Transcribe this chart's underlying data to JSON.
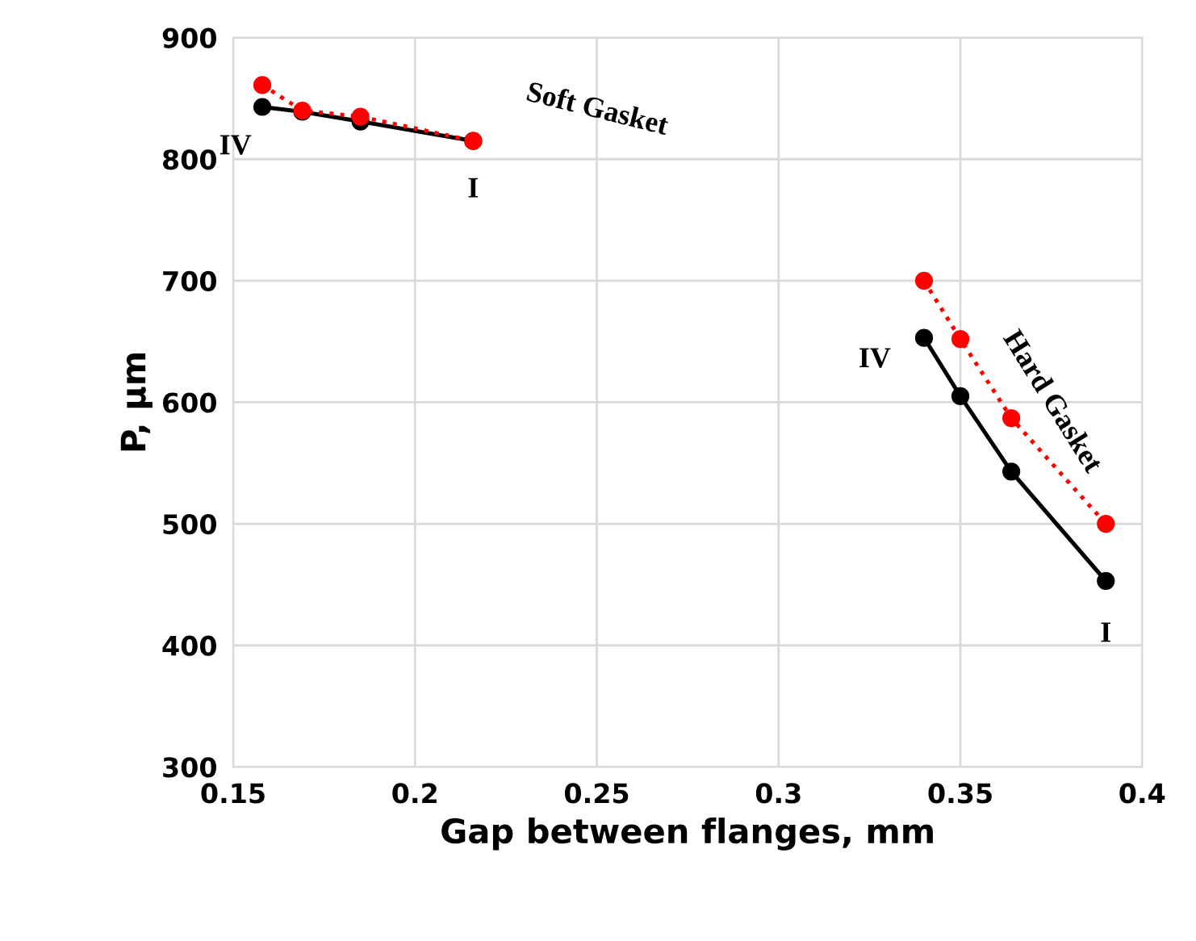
{
  "chart_data": {
    "type": "line",
    "xlabel": "Gap between flanges, mm",
    "ylabel": "P, μm",
    "xlim": [
      0.15,
      0.4
    ],
    "xticks": [
      0.15,
      0.2,
      0.25,
      0.3,
      0.35,
      0.4
    ],
    "ylim": [
      300,
      900
    ],
    "yticks": [
      300,
      400,
      500,
      600,
      700,
      800,
      900
    ],
    "grid": true,
    "legend": false,
    "marker": "circle",
    "series": [
      {
        "color": "#000000",
        "line_style": "solid",
        "x": [
          0.158,
          0.169,
          0.185,
          0.216
        ],
        "values": [
          843,
          839,
          831,
          815
        ]
      },
      {
        "color": "#ff0000",
        "line_style": "dotted",
        "x": [
          0.158,
          0.169,
          0.185,
          0.216
        ],
        "values": [
          861,
          840,
          835,
          815
        ]
      },
      {
        "color": "#000000",
        "line_style": "solid",
        "x": [
          0.34,
          0.35,
          0.364,
          0.39
        ],
        "values": [
          653,
          605,
          543,
          453
        ]
      },
      {
        "color": "#ff0000",
        "line_style": "dotted",
        "x": [
          0.34,
          0.35,
          0.364,
          0.39
        ],
        "values": [
          700,
          652,
          587,
          500
        ]
      }
    ],
    "annotations": [
      "Soft Gasket",
      {
        "text": "IV",
        "x": 0.158,
        "y": 843
      },
      {
        "text": "I",
        "x": 0.216,
        "y": 815
      },
      "Hard Gasket",
      {
        "text": "IV",
        "x": 0.34,
        "y": 653
      },
      {
        "text": "I",
        "x": 0.39,
        "y": 453
      }
    ]
  }
}
